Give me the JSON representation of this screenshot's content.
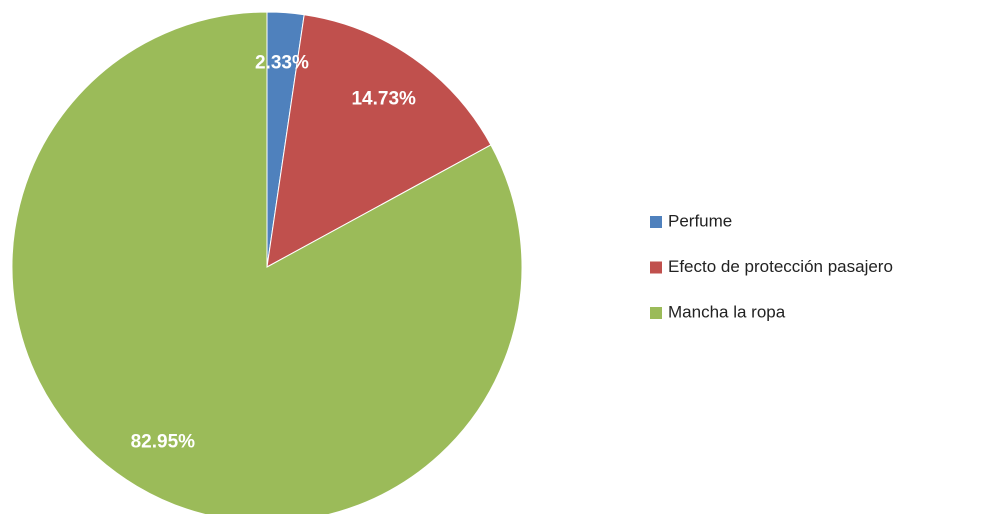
{
  "chart_data": {
    "type": "pie",
    "categories": [
      "Perfume",
      "Efecto de protección pasajero",
      "Mancha la ropa"
    ],
    "values": [
      2.33,
      14.73,
      82.95
    ],
    "value_labels": [
      "2.33%",
      "14.73%",
      "82.95%"
    ],
    "colors": [
      "#4f81bd",
      "#c0504d",
      "#9bbb59"
    ],
    "legend": "right"
  }
}
